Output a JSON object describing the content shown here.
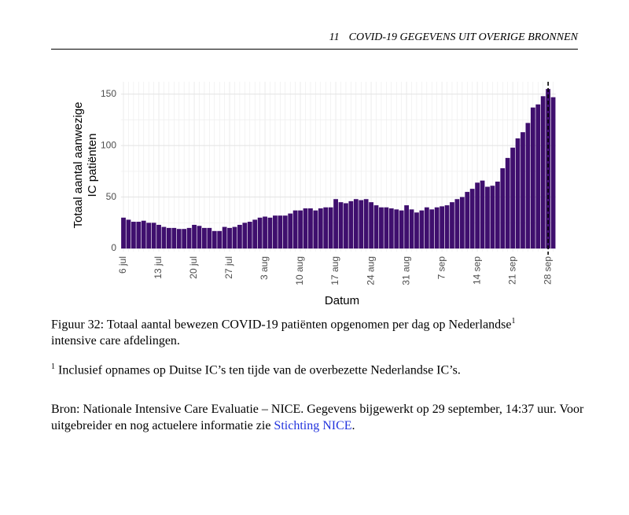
{
  "header": {
    "number": "11",
    "title": "COVID-19 GEGEVENS UIT OVERIGE BRONNEN"
  },
  "chart_data": {
    "type": "bar",
    "ylabel": [
      "Totaal aantal aanwezige",
      "IC patiënten"
    ],
    "xlabel": "Datum",
    "color": "#3f0f6e",
    "categories": [
      "6 jul",
      null,
      null,
      null,
      null,
      null,
      null,
      "13 jul",
      null,
      null,
      null,
      null,
      null,
      null,
      "20 jul",
      null,
      null,
      null,
      null,
      null,
      null,
      "27 jul",
      null,
      null,
      null,
      null,
      null,
      null,
      "3 aug",
      null,
      null,
      null,
      null,
      null,
      null,
      "10 aug",
      null,
      null,
      null,
      null,
      null,
      null,
      "17 aug",
      null,
      null,
      null,
      null,
      null,
      null,
      "24 aug",
      null,
      null,
      null,
      null,
      null,
      null,
      "31 aug",
      null,
      null,
      null,
      null,
      null,
      null,
      "7 sep",
      null,
      null,
      null,
      null,
      null,
      null,
      "14 sep",
      null,
      null,
      null,
      null,
      null,
      null,
      "21 sep",
      null,
      null,
      null,
      null,
      null,
      null,
      "28 sep",
      null
    ],
    "values": [
      30,
      28,
      26,
      26,
      27,
      25,
      25,
      23,
      21,
      20,
      20,
      19,
      19,
      20,
      23,
      22,
      20,
      20,
      17,
      17,
      21,
      20,
      21,
      23,
      25,
      26,
      28,
      30,
      31,
      30,
      32,
      32,
      32,
      34,
      37,
      37,
      39,
      39,
      37,
      39,
      40,
      40,
      48,
      45,
      44,
      46,
      48,
      47,
      48,
      45,
      42,
      40,
      40,
      39,
      38,
      37,
      42,
      38,
      35,
      37,
      40,
      38,
      40,
      41,
      42,
      45,
      48,
      50,
      55,
      58,
      64,
      66,
      60,
      61,
      65,
      78,
      88,
      98,
      107,
      113,
      122,
      137,
      140,
      148,
      155,
      147
    ],
    "ylim": [
      -3,
      162
    ],
    "yticks": [
      0,
      50,
      100,
      150
    ],
    "grid": true,
    "reference_line": "28 sep"
  },
  "caption": {
    "text": "Figuur 32: Totaal aantal bewezen COVID-19 patiënten opgenomen per dag op Nederlandse",
    "mark": "1",
    "text2": "intensive care afdelingen."
  },
  "footnote": {
    "mark": "1",
    "text": "Inclusief opnames op Duitse IC’s ten tijde van de overbezette Nederlandse IC’s."
  },
  "source": {
    "text": "Bron: Nationale Intensive Care Evaluatie – NICE. Gegevens bijgewerkt op 29 september, 14:37 uur. Voor uitgebreider en nog actuelere informatie zie ",
    "link": "Stichting NICE",
    "end": "."
  }
}
